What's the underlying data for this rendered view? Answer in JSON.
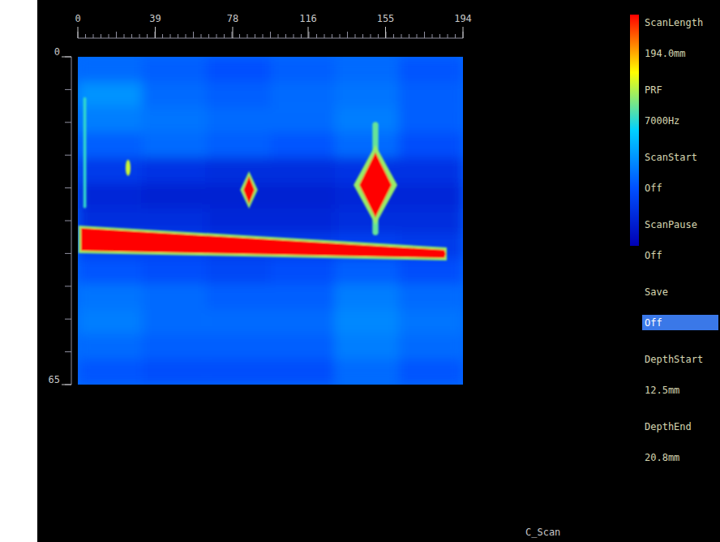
{
  "chart_data": {
    "type": "heatmap",
    "xlim": [
      0,
      194
    ],
    "xticks": [
      0,
      39,
      78,
      116,
      155,
      194
    ],
    "ylim": [
      0,
      65
    ],
    "yticks": [
      0,
      65
    ],
    "colorbar": {
      "range": [
        0,
        100
      ],
      "colors": [
        "#0000b4",
        "#0050ff",
        "#00d0ff",
        "#ffff00",
        "#ff0000"
      ]
    },
    "cells": [
      [
        30,
        28,
        25,
        28,
        30,
        26
      ],
      [
        38,
        30,
        28,
        30,
        32,
        28
      ],
      [
        34,
        32,
        30,
        30,
        34,
        28
      ],
      [
        28,
        30,
        28,
        26,
        30,
        24
      ],
      [
        18,
        16,
        14,
        14,
        16,
        16
      ],
      [
        12,
        10,
        10,
        10,
        12,
        12
      ],
      [
        14,
        14,
        12,
        12,
        14,
        14
      ],
      [
        20,
        20,
        18,
        18,
        20,
        18
      ],
      [
        26,
        24,
        22,
        24,
        28,
        24
      ],
      [
        32,
        30,
        28,
        28,
        34,
        30
      ],
      [
        34,
        30,
        30,
        30,
        36,
        32
      ],
      [
        30,
        28,
        28,
        28,
        34,
        30
      ],
      [
        26,
        24,
        24,
        24,
        30,
        26
      ]
    ],
    "indications": [
      {
        "shape": "streak",
        "x": 3.5,
        "y": [
          8,
          30
        ],
        "width": 1.5,
        "value": 55
      },
      {
        "shape": "streak",
        "x": 149.9,
        "y": [
          12.9,
          35.4
        ],
        "width": 3,
        "value": 60
      },
      {
        "shape": "dot",
        "x": 25.3,
        "y": 22.0,
        "width": 2.5,
        "height": 3.2,
        "value": 70
      },
      {
        "shape": "diamond",
        "x": 86.2,
        "y": 26.4,
        "width": 5.7,
        "height": 5.6,
        "value": 100,
        "rim": 65
      },
      {
        "shape": "diamond",
        "x": 149.9,
        "y": 25.4,
        "width": 16.3,
        "height": 12.9,
        "value": 100,
        "rim": 65
      },
      {
        "shape": "band",
        "x": [
          1.6,
          184.6
        ],
        "y": [
          36.2,
          39.1
        ],
        "thickness": [
          4.5,
          1.6
        ],
        "value": 100,
        "rim": 65
      }
    ]
  },
  "panel": [
    {
      "label": "ScanLength",
      "value": "194.0mm"
    },
    {
      "label": "PRF",
      "value": "7000Hz"
    },
    {
      "label": "ScanStart",
      "value": "Off"
    },
    {
      "label": "ScanPause",
      "value": "Off"
    },
    {
      "label": "Save",
      "value": "Off",
      "selected": true
    },
    {
      "label": "DepthStart",
      "value": "12.5mm"
    },
    {
      "label": "DepthEnd",
      "value": "20.8mm"
    }
  ],
  "footer": "C_Scan"
}
